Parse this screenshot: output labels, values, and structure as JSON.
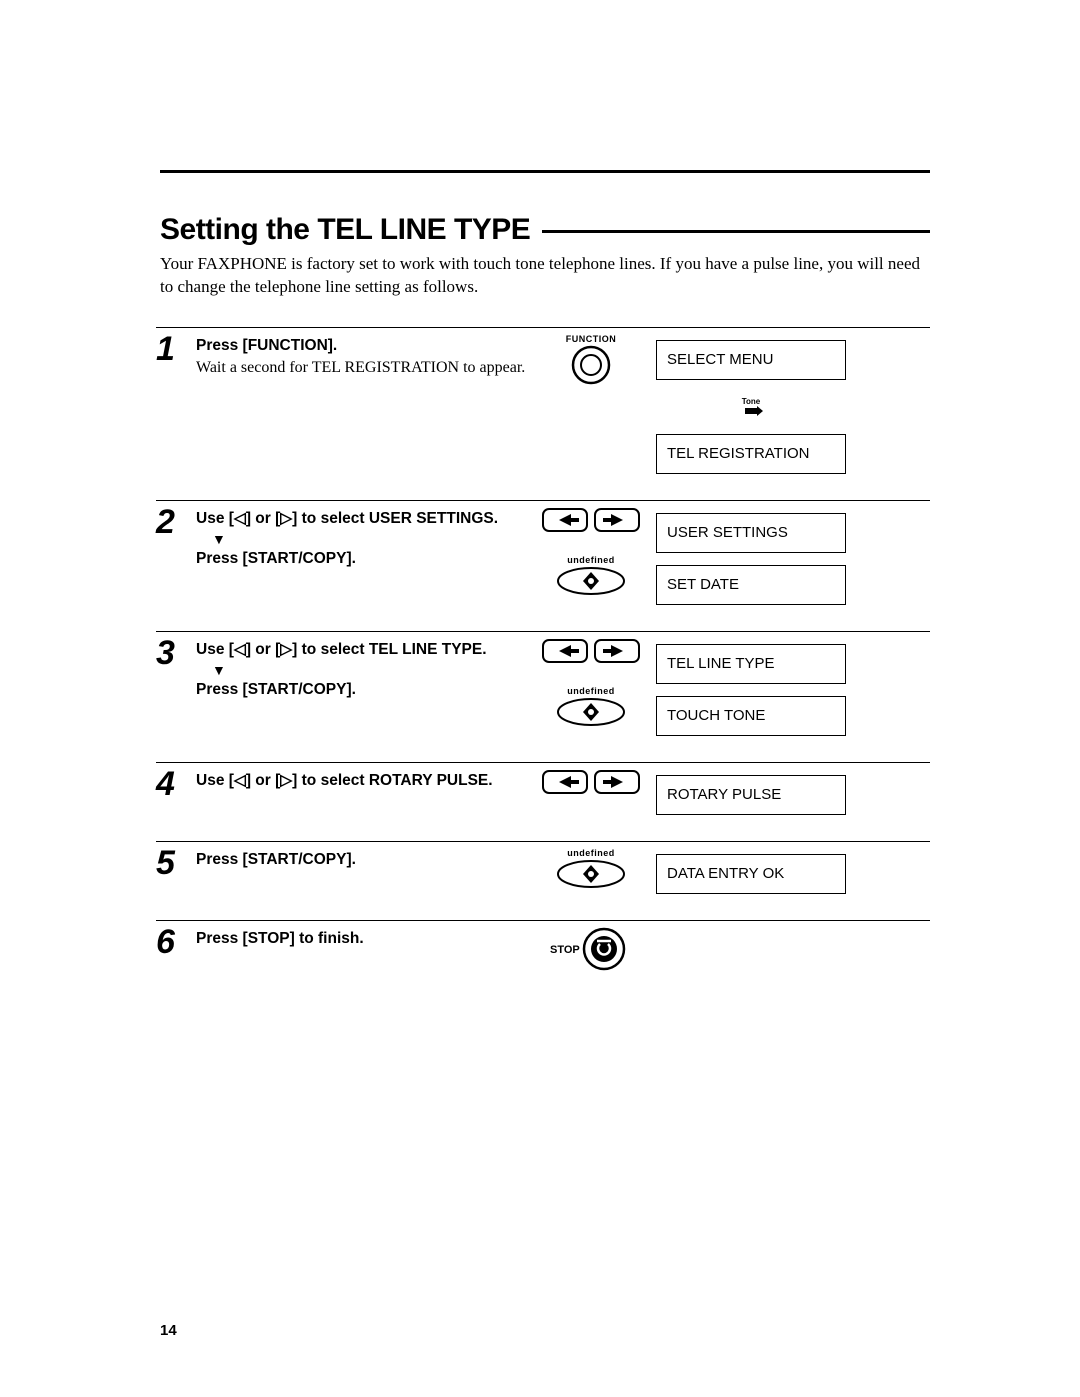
{
  "page_number": "14",
  "heading": "Setting the TEL LINE TYPE",
  "intro": "Your FAXPHONE is factory set to work with touch tone telephone lines. If you have a pulse line, you will need to change the telephone line setting as follows.",
  "colors": {
    "text": "#000000",
    "bg": "#ffffff",
    "border": "#000000"
  },
  "icon_labels": {
    "function": "FUNCTION",
    "tone": "Tone",
    "start_copy": "START/COPY",
    "stop": "STOP"
  },
  "icon_names": {
    "function": "function-button-icon",
    "arrows": "left-right-arrow-buttons-icon",
    "start": "start-copy-button-icon",
    "stop": "stop-button-icon",
    "tone": "tone-arrow-icon"
  },
  "steps": [
    {
      "num": "1",
      "primary": "Press [FUNCTION].",
      "secondary": "Wait a second for TEL REGISTRATION to appear.",
      "icons": [
        "function"
      ],
      "between_icon": "tone",
      "displays": [
        "SELECT MENU",
        "TEL REGISTRATION"
      ]
    },
    {
      "num": "2",
      "primary": "Use [<] or [>] to select USER SETTINGS.",
      "arrow_then": "Press [START/COPY].",
      "icons": [
        "arrows",
        "start"
      ],
      "displays": [
        "USER SETTINGS",
        "SET DATE"
      ]
    },
    {
      "num": "3",
      "primary": "Use [<] or [>] to select TEL LINE TYPE.",
      "arrow_then": "Press [START/COPY].",
      "icons": [
        "arrows",
        "start"
      ],
      "displays": [
        "TEL LINE TYPE",
        "TOUCH TONE"
      ]
    },
    {
      "num": "4",
      "primary": "Use [<] or [>] to select ROTARY PULSE.",
      "icons": [
        "arrows"
      ],
      "displays": [
        "ROTARY PULSE"
      ]
    },
    {
      "num": "5",
      "primary": "Press [START/COPY].",
      "icons": [
        "start"
      ],
      "displays": [
        "DATA ENTRY OK"
      ]
    },
    {
      "num": "6",
      "primary": "Press [STOP] to finish.",
      "icons": [
        "stop"
      ],
      "displays": []
    }
  ]
}
